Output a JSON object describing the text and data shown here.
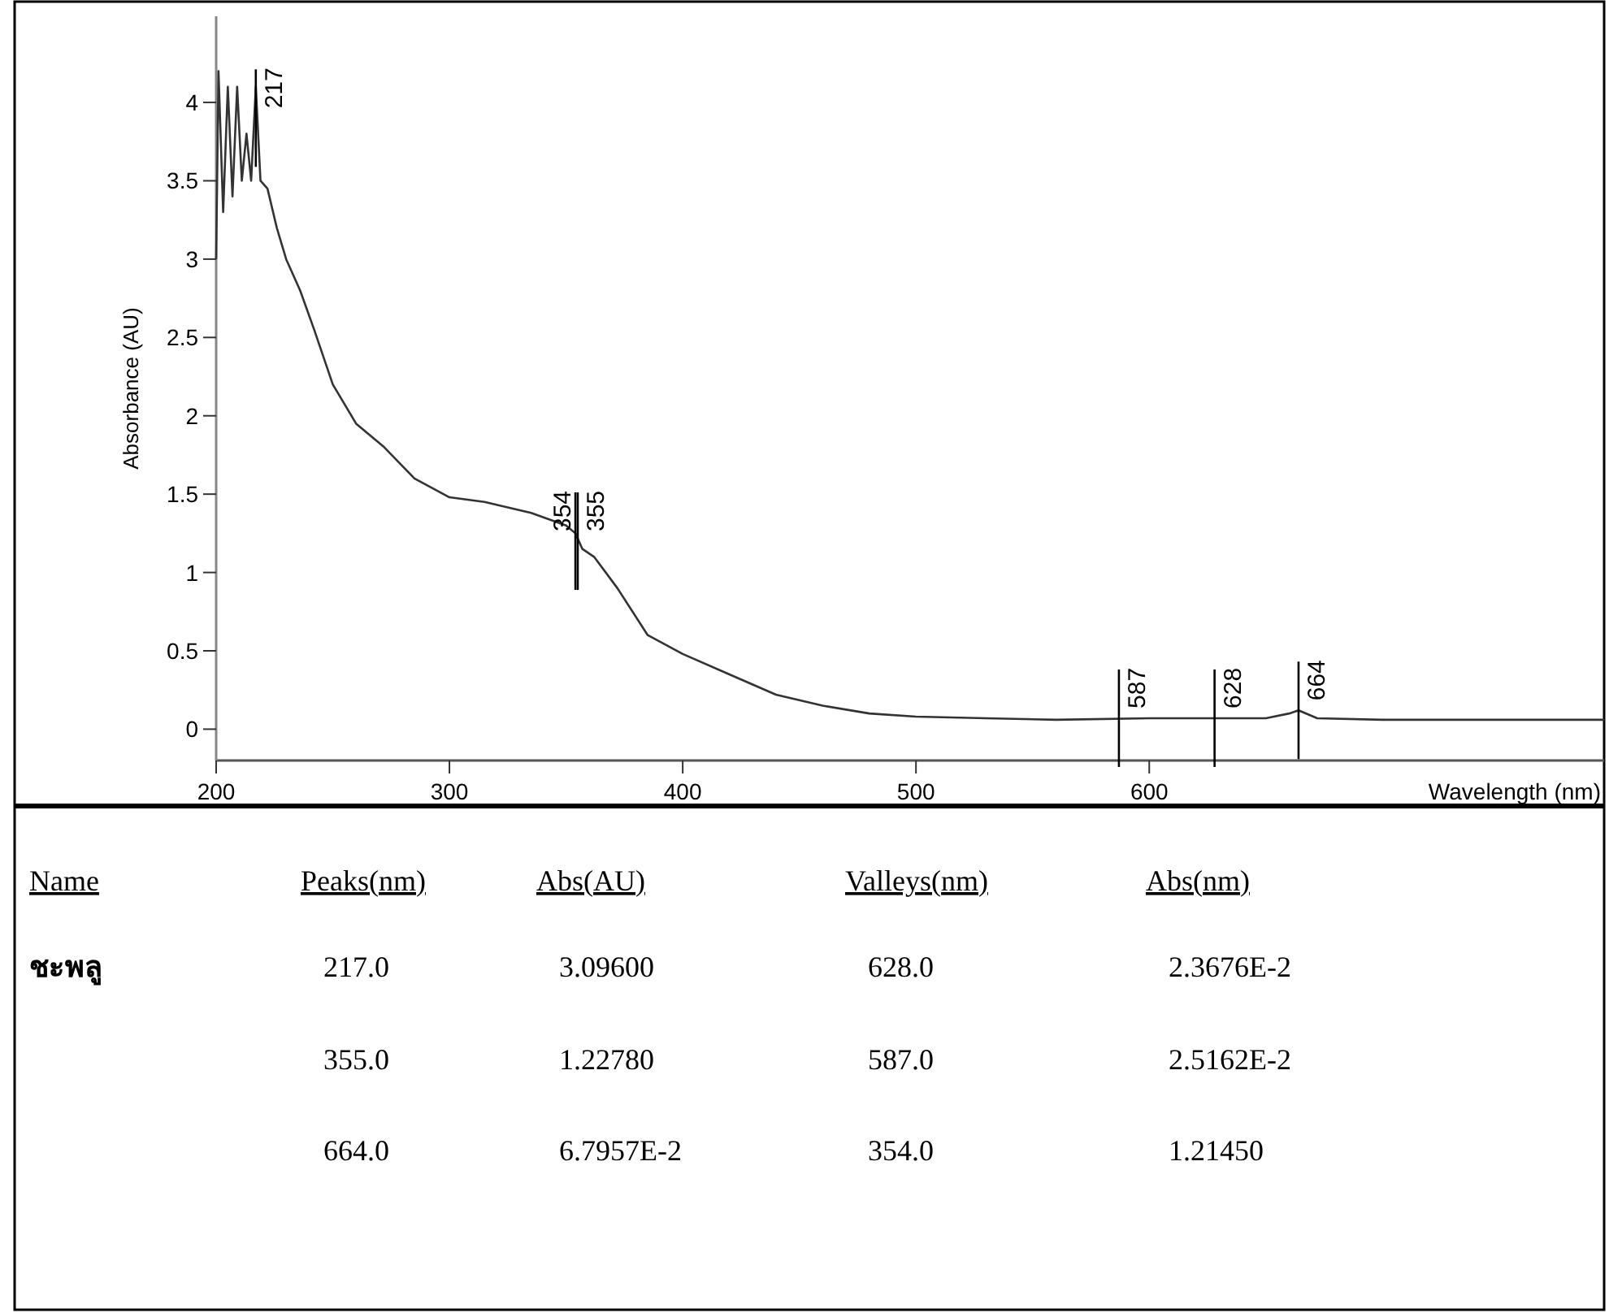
{
  "chart_data": {
    "type": "line",
    "xlabel": "Wavelength (nm)",
    "ylabel": "Absorbance (AU)",
    "xlim": [
      200,
      795
    ],
    "ylim": [
      -0.2,
      4.55
    ],
    "xticks": [
      200,
      300,
      400,
      500,
      600
    ],
    "yticks": [
      0,
      0.5,
      1,
      1.5,
      2,
      2.5,
      3,
      3.5,
      4
    ],
    "series": [
      {
        "color": "#333333",
        "x": [
          200,
          201,
          203,
          205,
          207,
          209,
          211,
          213,
          215,
          217,
          219,
          222,
          226,
          230,
          236,
          242,
          250,
          260,
          272,
          285,
          300,
          315,
          335,
          350,
          354,
          357,
          362,
          372,
          385,
          400,
          420,
          440,
          460,
          480,
          500,
          530,
          560,
          600,
          628,
          650,
          660,
          664,
          672,
          700,
          795
        ],
        "values": [
          3.0,
          4.2,
          3.3,
          4.1,
          3.4,
          4.1,
          3.5,
          3.8,
          3.5,
          4.1,
          3.5,
          3.45,
          3.2,
          3.0,
          2.8,
          2.55,
          2.2,
          1.95,
          1.8,
          1.6,
          1.48,
          1.45,
          1.38,
          1.3,
          1.25,
          1.15,
          1.1,
          0.9,
          0.6,
          0.48,
          0.35,
          0.22,
          0.15,
          0.1,
          0.08,
          0.07,
          0.06,
          0.07,
          0.07,
          0.07,
          0.1,
          0.12,
          0.07,
          0.06,
          0.06
        ]
      }
    ],
    "annotations": [
      {
        "text": "217",
        "x": 217,
        "y": 3.9
      },
      {
        "text": "354",
        "x": 354,
        "y": 1.2
      },
      {
        "text": "355",
        "x": 355,
        "y": 1.2
      },
      {
        "text": "587",
        "x": 587,
        "y": 0.07
      },
      {
        "text": "628",
        "x": 628,
        "y": 0.07
      },
      {
        "text": "664",
        "x": 664,
        "y": 0.12
      },
      "Name",
      "Peaks(nm)",
      "Abs(AU)",
      "Valleys(nm)",
      "Abs(nm)",
      "**ชะพลู**",
      "217.0",
      "3.09600",
      "628.0",
      "2.3676E-2",
      "355.0",
      "1.22780",
      "587.0",
      "2.5162E-2",
      "664.0",
      "6.7957E-2",
      "354.0",
      "1.21450"
    ]
  }
}
